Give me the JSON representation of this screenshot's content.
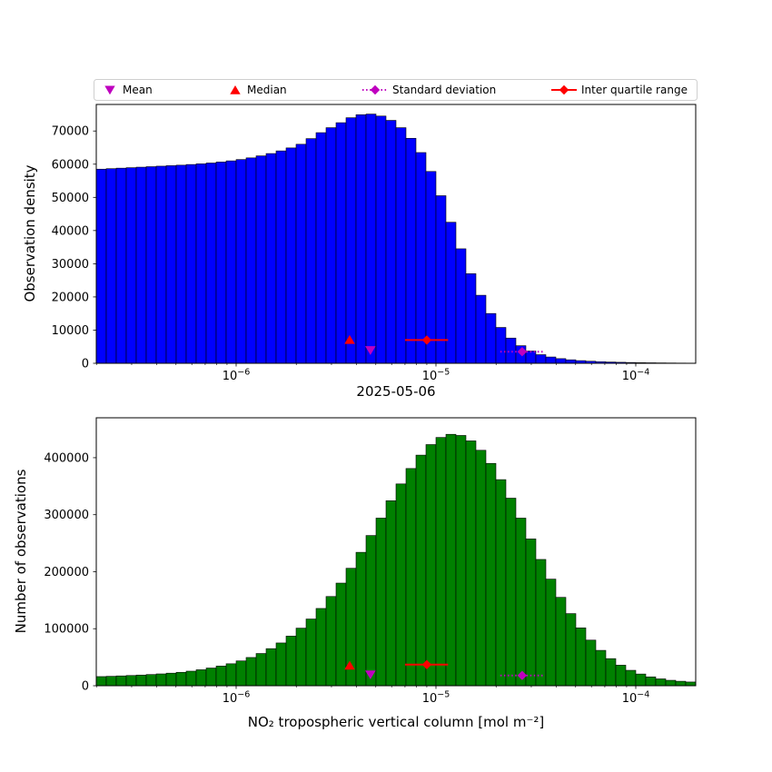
{
  "figure": {
    "background": "#ffffff",
    "date_title": "2025-05-06",
    "xlabel": "NO₂ tropospheric vertical column [mol m⁻²]"
  },
  "legend": {
    "items": [
      {
        "label": "Mean",
        "marker": "triangle-down",
        "color": "#bf00bf",
        "linestyle": "none"
      },
      {
        "label": "Median",
        "marker": "triangle-up",
        "color": "#ff0000",
        "linestyle": "none"
      },
      {
        "label": "Standard deviation",
        "marker": "diamond",
        "color": "#bf00bf",
        "linestyle": "dotted"
      },
      {
        "label": "Inter quartile range",
        "marker": "diamond",
        "color": "#ff0000",
        "linestyle": "solid"
      }
    ]
  },
  "chart_data": [
    {
      "type": "bar",
      "subtype": "histogram",
      "xscale": "log",
      "ylabel": "Observation density",
      "bar_color": "#0000ff",
      "edge_color": "#000000",
      "x_log_min": -6.7,
      "x_log_max": -3.7,
      "xlim": [
        2e-07,
        0.0002
      ],
      "ylim": [
        0,
        78000
      ],
      "yticks": [
        0,
        10000,
        20000,
        30000,
        40000,
        50000,
        60000,
        70000
      ],
      "xtick_exponents": [
        -6,
        -5,
        -4
      ],
      "values": [
        58500,
        58650,
        58800,
        58950,
        59100,
        59250,
        59400,
        59550,
        59700,
        59900,
        60100,
        60350,
        60650,
        61000,
        61400,
        61900,
        62500,
        63200,
        64000,
        64900,
        66000,
        67700,
        69500,
        71000,
        72500,
        74000,
        74900,
        75100,
        74500,
        73200,
        71000,
        67800,
        63500,
        57800,
        50500,
        42500,
        34500,
        27000,
        20500,
        15000,
        10800,
        7600,
        5300,
        3700,
        2600,
        1900,
        1400,
        1050,
        800,
        620,
        480,
        380,
        300,
        240,
        190,
        150,
        120,
        95,
        75,
        60
      ],
      "markers": {
        "median": {
          "x": 3.7e-06,
          "y": 7000,
          "color": "#ff0000"
        },
        "mean": {
          "x": 4.7e-06,
          "y": 4000,
          "color": "#bf00bf"
        },
        "iqr": {
          "x": 9e-06,
          "x_lo": 7e-06,
          "x_hi": 1.15e-05,
          "y": 7000,
          "color": "#ff0000",
          "linestyle": "solid"
        },
        "std": {
          "x": 2.7e-05,
          "x_lo": 2.1e-05,
          "x_hi": 3.5e-05,
          "y": 3500,
          "color": "#bf00bf",
          "linestyle": "dotted"
        }
      }
    },
    {
      "type": "bar",
      "subtype": "histogram",
      "xscale": "log",
      "ylabel": "Number of observations",
      "bar_color": "#008000",
      "edge_color": "#000000",
      "x_log_min": -6.7,
      "x_log_max": -3.7,
      "xlim": [
        2e-07,
        0.0002
      ],
      "ylim": [
        0,
        470000
      ],
      "yticks": [
        0,
        100000,
        200000,
        300000,
        400000
      ],
      "xtick_exponents": [
        -6,
        -5,
        -4
      ],
      "values": [
        16000,
        16500,
        17200,
        17900,
        18700,
        19600,
        20700,
        22000,
        23500,
        25500,
        28000,
        31000,
        34500,
        38500,
        43500,
        49500,
        56500,
        65000,
        75000,
        87000,
        101000,
        117000,
        135500,
        156500,
        180000,
        206000,
        234000,
        263500,
        294000,
        324500,
        354000,
        381000,
        404500,
        423000,
        435500,
        441000,
        439000,
        429500,
        413000,
        390000,
        361500,
        329000,
        294000,
        257500,
        221500,
        187000,
        155000,
        126500,
        101500,
        80000,
        62000,
        47500,
        36000,
        27000,
        20500,
        15500,
        12000,
        9500,
        7800,
        6500
      ],
      "markers": {
        "median": {
          "x": 3.7e-06,
          "y": 35000,
          "color": "#ff0000"
        },
        "mean": {
          "x": 4.7e-06,
          "y": 20000,
          "color": "#bf00bf"
        },
        "iqr": {
          "x": 9e-06,
          "x_lo": 7e-06,
          "x_hi": 1.15e-05,
          "y": 37000,
          "color": "#ff0000",
          "linestyle": "solid"
        },
        "std": {
          "x": 2.7e-05,
          "x_lo": 2.1e-05,
          "x_hi": 3.5e-05,
          "y": 18000,
          "color": "#bf00bf",
          "linestyle": "dotted"
        }
      }
    }
  ]
}
